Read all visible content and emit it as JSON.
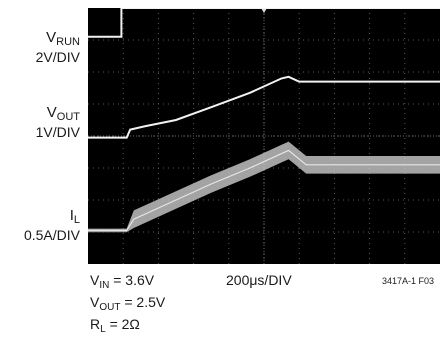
{
  "chart_data": {
    "type": "line",
    "title": "",
    "divisions": {
      "x": 10,
      "y": 8
    },
    "x_scale": "200μs/DIV",
    "channels": [
      {
        "name": "VRUN",
        "sym": "V",
        "sub": "RUN",
        "scale": "2V/DIV",
        "points": [
          [
            0,
            7.1
          ],
          [
            0.95,
            7.1
          ],
          [
            0.95,
            8.0
          ],
          [
            10,
            8.0
          ]
        ]
      },
      {
        "name": "VOUT",
        "sym": "V",
        "sub": "OUT",
        "scale": "1V/DIV",
        "points": [
          [
            0,
            3.95
          ],
          [
            1.1,
            3.95
          ],
          [
            1.2,
            4.2
          ],
          [
            1.6,
            4.3
          ],
          [
            2.5,
            4.5
          ],
          [
            3.5,
            4.9
          ],
          [
            4.6,
            5.35
          ],
          [
            5.5,
            5.8
          ],
          [
            5.7,
            5.85
          ],
          [
            6.0,
            5.7
          ],
          [
            10,
            5.7
          ]
        ]
      },
      {
        "name": "IL",
        "sym": "I",
        "sub": "L",
        "scale": "0.5A/DIV",
        "points": [
          [
            0,
            1.05
          ],
          [
            1.1,
            1.05
          ],
          [
            1.3,
            1.4
          ],
          [
            2.5,
            2.0
          ],
          [
            3.5,
            2.5
          ],
          [
            4.6,
            3.0
          ],
          [
            5.5,
            3.45
          ],
          [
            5.7,
            3.55
          ],
          [
            6.2,
            3.1
          ],
          [
            10,
            3.1
          ]
        ],
        "ripple": 0.55
      }
    ],
    "conditions": [
      {
        "sym": "V",
        "sub": "IN",
        "value": "= 3.6V"
      },
      {
        "sym": "V",
        "sub": "OUT",
        "value": "= 2.5V"
      },
      {
        "sym": "R",
        "sub": "L",
        "value": "= 2Ω"
      }
    ],
    "figure_id": "3417A-1 F03"
  }
}
